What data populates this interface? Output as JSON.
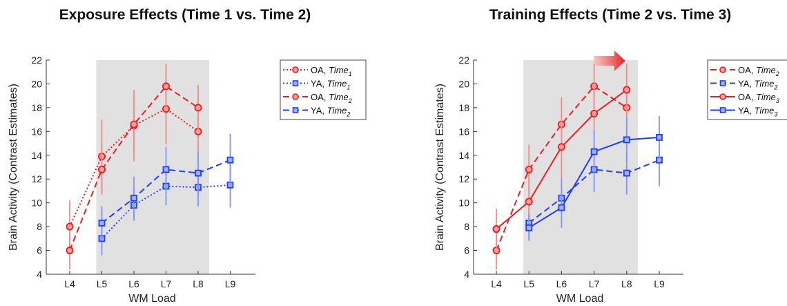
{
  "chart_data": [
    {
      "type": "line",
      "title": "Exposure Effects (Time 1 vs. Time 2)",
      "xlabel": "WM Load",
      "ylabel": "Brain Activity (Contrast Estimates)",
      "categories": [
        "L4",
        "L5",
        "L6",
        "L7",
        "L8",
        "L9"
      ],
      "ylim": [
        4,
        22
      ],
      "yticks": [
        4,
        6,
        8,
        10,
        12,
        14,
        16,
        18,
        20,
        22
      ],
      "shaded_x_range": [
        "L5",
        "L8"
      ],
      "grid": false,
      "legend_position": "right",
      "series": [
        {
          "legend_prefix": "OA, ",
          "legend_time": "Time",
          "legend_sub": "1",
          "color": "#ee1c1c",
          "dash": "dotted",
          "marker": "circle",
          "points": [
            {
              "x": "L4",
              "y": 8.0,
              "err": 2.2
            },
            {
              "x": "L5",
              "y": 13.9,
              "err": 3.1
            },
            {
              "x": "L6",
              "y": 16.5,
              "err": 3.0
            },
            {
              "x": "L7",
              "y": 17.9,
              "err": 3.0
            },
            {
              "x": "L8",
              "y": 16.0,
              "err": 2.8
            }
          ]
        },
        {
          "legend_prefix": "YA, ",
          "legend_time": "Time",
          "legend_sub": "1",
          "color": "#1f3cff",
          "dash": "dotted",
          "marker": "square",
          "points": [
            {
              "x": "L5",
              "y": 7.0,
              "err": 1.4
            },
            {
              "x": "L6",
              "y": 9.8,
              "err": 1.3
            },
            {
              "x": "L7",
              "y": 11.4,
              "err": 1.6
            },
            {
              "x": "L8",
              "y": 11.3,
              "err": 1.6
            },
            {
              "x": "L9",
              "y": 11.5,
              "err": 1.9
            }
          ]
        },
        {
          "legend_prefix": "OA, ",
          "legend_time": "Time",
          "legend_sub": "2",
          "color": "#ee1c1c",
          "dash": "dashed",
          "marker": "circle",
          "points": [
            {
              "x": "L4",
              "y": 6.0,
              "err": 1.6
            },
            {
              "x": "L5",
              "y": 12.8,
              "err": 2.1
            },
            {
              "x": "L6",
              "y": 16.6,
              "err": 2.3
            },
            {
              "x": "L7",
              "y": 19.8,
              "err": 1.9
            },
            {
              "x": "L8",
              "y": 18.0,
              "err": 1.9
            }
          ]
        },
        {
          "legend_prefix": "YA, ",
          "legend_time": "Time",
          "legend_sub": "2",
          "color": "#1f3cff",
          "dash": "dashed",
          "marker": "square",
          "points": [
            {
              "x": "L5",
              "y": 8.3,
              "err": 1.4
            },
            {
              "x": "L6",
              "y": 10.4,
              "err": 1.8
            },
            {
              "x": "L7",
              "y": 12.8,
              "err": 1.9
            },
            {
              "x": "L8",
              "y": 12.5,
              "err": 1.8
            },
            {
              "x": "L9",
              "y": 13.6,
              "err": 2.2
            }
          ]
        }
      ]
    },
    {
      "type": "line",
      "title": "Training Effects (Time 2 vs. Time 3)",
      "xlabel": "WM Load",
      "ylabel": "Brain Activity (Contrast Estimates)",
      "categories": [
        "L4",
        "L5",
        "L6",
        "L7",
        "L8",
        "L9"
      ],
      "ylim": [
        4,
        22
      ],
      "yticks": [
        4,
        6,
        8,
        10,
        12,
        14,
        16,
        18,
        20,
        22
      ],
      "shaded_x_range": [
        "L5",
        "L8"
      ],
      "grid": false,
      "legend_position": "right",
      "annotation": "red arrow pointing right above the shaded region",
      "series": [
        {
          "legend_prefix": "OA, ",
          "legend_time": "Time",
          "legend_sub": "2",
          "color": "#ee1c1c",
          "dash": "dashed",
          "marker": "circle",
          "points": [
            {
              "x": "L4",
              "y": 6.0,
              "err": 1.6
            },
            {
              "x": "L5",
              "y": 12.8,
              "err": 2.1
            },
            {
              "x": "L6",
              "y": 16.6,
              "err": 2.3
            },
            {
              "x": "L7",
              "y": 19.8,
              "err": 1.9
            },
            {
              "x": "L8",
              "y": 18.0,
              "err": 1.9
            }
          ]
        },
        {
          "legend_prefix": "YA, ",
          "legend_time": "Time",
          "legend_sub": "2",
          "color": "#1f3cff",
          "dash": "dashed",
          "marker": "square",
          "points": [
            {
              "x": "L5",
              "y": 8.3,
              "err": 1.4
            },
            {
              "x": "L6",
              "y": 10.4,
              "err": 1.8
            },
            {
              "x": "L7",
              "y": 12.8,
              "err": 1.9
            },
            {
              "x": "L8",
              "y": 12.5,
              "err": 1.8
            },
            {
              "x": "L9",
              "y": 13.6,
              "err": 2.2
            }
          ]
        },
        {
          "legend_prefix": "OA, ",
          "legend_time": "Time",
          "legend_sub": "3",
          "color": "#ee1c1c",
          "dash": "solid",
          "marker": "circle",
          "points": [
            {
              "x": "L4",
              "y": 7.8,
              "err": 1.7
            },
            {
              "x": "L5",
              "y": 10.1,
              "err": 2.2
            },
            {
              "x": "L6",
              "y": 14.7,
              "err": 2.6
            },
            {
              "x": "L7",
              "y": 17.5,
              "err": 2.7
            },
            {
              "x": "L8",
              "y": 19.5,
              "err": 2.2
            }
          ]
        },
        {
          "legend_prefix": "YA, ",
          "legend_time": "Time",
          "legend_sub": "3",
          "color": "#1f3cff",
          "dash": "solid",
          "marker": "square",
          "points": [
            {
              "x": "L5",
              "y": 7.9,
              "err": 1.1
            },
            {
              "x": "L6",
              "y": 9.6,
              "err": 1.7
            },
            {
              "x": "L7",
              "y": 14.3,
              "err": 1.8
            },
            {
              "x": "L8",
              "y": 15.3,
              "err": 1.9
            },
            {
              "x": "L9",
              "y": 15.5,
              "err": 1.8
            }
          ]
        }
      ]
    }
  ]
}
